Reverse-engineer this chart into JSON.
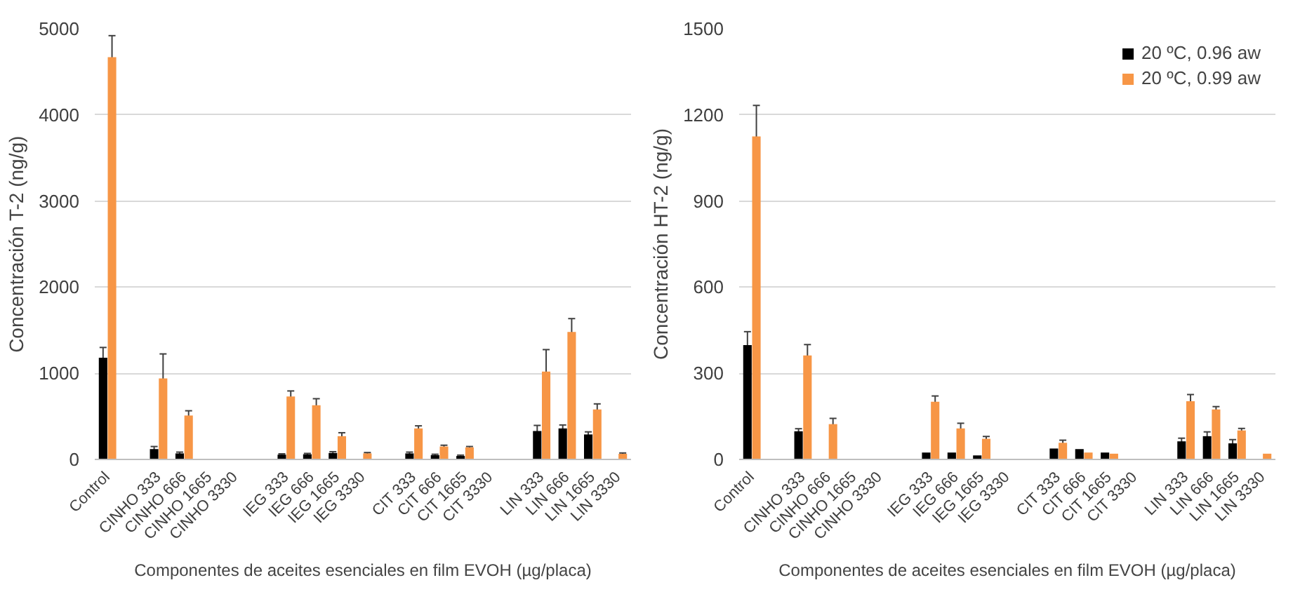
{
  "chart_data": [
    {
      "type": "bar",
      "xlabel": "Componentes de aceites esenciales en film EVOH (µg/placa)",
      "ylabel": "Concentración T-2 (ng/g)",
      "categories": [
        "Control",
        null,
        "CINHO 333",
        "CINHO 666",
        "CINHO 1665",
        "CINHO 3330",
        null,
        "IEG 333",
        "IEG 666",
        "IEG 1665",
        "IEG 3330",
        null,
        "CIT 333",
        "CIT 666",
        "CIT 1665",
        "CIT 3330",
        null,
        "LIN 333",
        "LIN 666",
        "LIN 1665",
        "LIN 3330"
      ],
      "series": [
        {
          "color": "#000000",
          "values": [
            1180,
            null,
            120,
            70,
            0,
            0,
            null,
            55,
            60,
            75,
            0,
            null,
            70,
            50,
            40,
            0,
            null,
            330,
            360,
            290,
            0
          ],
          "errors": [
            120,
            null,
            30,
            15,
            null,
            null,
            null,
            10,
            10,
            15,
            null,
            null,
            15,
            10,
            10,
            null,
            null,
            65,
            40,
            30,
            null
          ]
        },
        {
          "color": "#f79646",
          "values": [
            4670,
            null,
            940,
            510,
            0,
            0,
            null,
            730,
            630,
            270,
            70,
            null,
            360,
            150,
            140,
            0,
            null,
            1020,
            1480,
            580,
            65
          ],
          "errors": [
            250,
            null,
            285,
            55,
            null,
            null,
            null,
            65,
            75,
            40,
            10,
            null,
            30,
            15,
            10,
            null,
            null,
            255,
            155,
            65,
            10
          ]
        }
      ],
      "ylim": [
        0,
        5000
      ],
      "yticks": [
        0,
        1000,
        2000,
        3000,
        4000,
        5000
      ],
      "grid": "y",
      "legend": false
    },
    {
      "type": "bar",
      "xlabel": "Componentes de aceites esenciales en film EVOH (µg/placa)",
      "ylabel": "Concentración HT-2 (ng/g)",
      "categories": [
        "Control",
        null,
        "CINHO 333",
        "CINHO 666",
        "CINHO 1665",
        "CINHO 3330",
        null,
        "IEG 333",
        "IEG 666",
        "IEG 1665",
        "IEG 3330",
        null,
        "CIT 333",
        "CIT 666",
        "CIT 1665",
        "CIT 3330",
        null,
        "LIN 333",
        "LIN 666",
        "LIN 1665",
        "LIN 3330"
      ],
      "series": [
        {
          "name": "20 ºC, 0.96 aw",
          "color": "#000000",
          "values": [
            398,
            null,
            98,
            0,
            0,
            0,
            null,
            24,
            24,
            14,
            0,
            null,
            38,
            36,
            24,
            0,
            null,
            63,
            81,
            56,
            0
          ],
          "errors": [
            47,
            null,
            9,
            null,
            null,
            null,
            null,
            null,
            null,
            null,
            null,
            null,
            null,
            null,
            null,
            null,
            null,
            11,
            15,
            13,
            null
          ]
        },
        {
          "name": "20 ºC, 0.99 aw",
          "color": "#f79646",
          "values": [
            1125,
            null,
            362,
            123,
            0,
            0,
            null,
            201,
            108,
            72,
            0,
            null,
            58,
            24,
            20,
            0,
            null,
            203,
            174,
            101,
            20
          ],
          "errors": [
            108,
            null,
            38,
            20,
            null,
            null,
            null,
            20,
            18,
            8,
            null,
            null,
            9,
            null,
            null,
            null,
            null,
            23,
            10,
            7,
            null
          ]
        }
      ],
      "ylim": [
        0,
        1500
      ],
      "yticks": [
        0,
        300,
        600,
        900,
        1200,
        1500
      ],
      "grid": "y",
      "legend": "top right"
    }
  ]
}
